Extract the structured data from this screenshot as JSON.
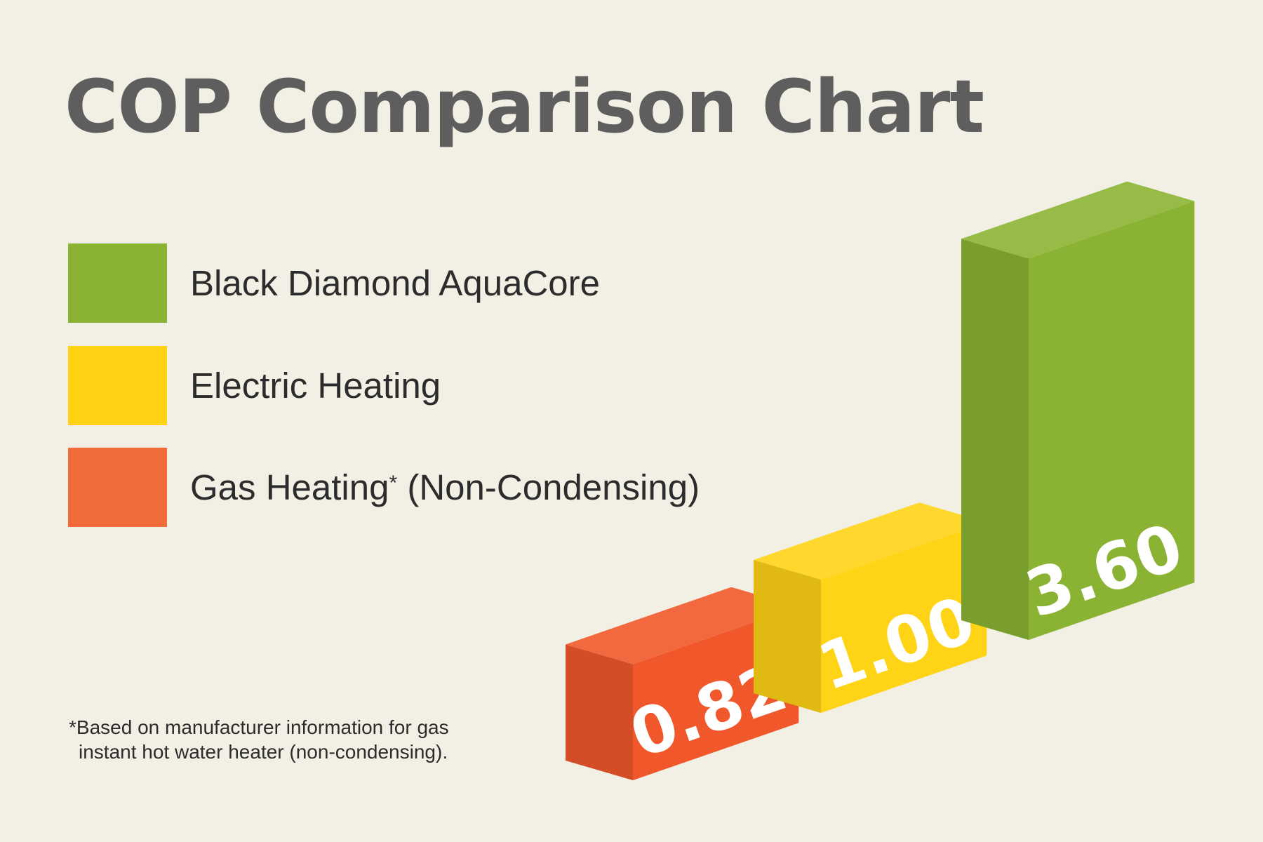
{
  "chart_data": {
    "type": "bar",
    "title": "COP Comparison Chart",
    "categories": [
      "Gas Heating* (Non-Condensing)",
      "Electric Heating",
      "Black Diamond AquaCore"
    ],
    "values": [
      0.82,
      1.0,
      3.6
    ],
    "value_labels": [
      "0.82",
      "1.00",
      "3.60"
    ],
    "legend": [
      {
        "label": "Black Diamond AquaCore",
        "color": "#8bb333"
      },
      {
        "label": "Electric Heating",
        "color": "#ffd314"
      },
      {
        "label": "Gas Heating",
        "suffix": "*",
        "label_after": " (Non-Condensing)",
        "color": "#f26c3b"
      }
    ],
    "colors": [
      "#f0582b",
      "#ffd316",
      "#8bb333"
    ],
    "style": "3d isometric blocks",
    "legend_position": "left",
    "grid": false,
    "footnote": {
      "line1": "*Based on manufacturer information for gas",
      "line2": "instant hot water heater (non-condensing)."
    }
  }
}
